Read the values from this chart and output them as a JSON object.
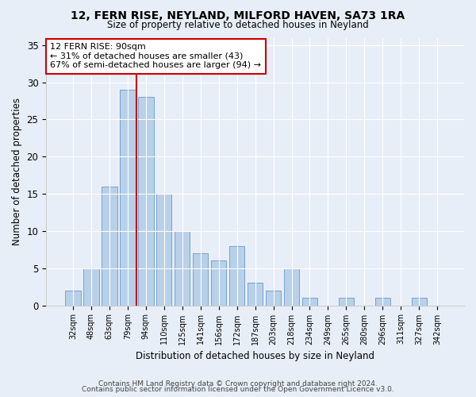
{
  "title1": "12, FERN RISE, NEYLAND, MILFORD HAVEN, SA73 1RA",
  "title2": "Size of property relative to detached houses in Neyland",
  "xlabel": "Distribution of detached houses by size in Neyland",
  "ylabel": "Number of detached properties",
  "categories": [
    "32sqm",
    "48sqm",
    "63sqm",
    "79sqm",
    "94sqm",
    "110sqm",
    "125sqm",
    "141sqm",
    "156sqm",
    "172sqm",
    "187sqm",
    "203sqm",
    "218sqm",
    "234sqm",
    "249sqm",
    "265sqm",
    "280sqm",
    "296sqm",
    "311sqm",
    "327sqm",
    "342sqm"
  ],
  "values": [
    2,
    5,
    16,
    29,
    28,
    15,
    10,
    7,
    6,
    8,
    3,
    2,
    5,
    1,
    0,
    1,
    0,
    1,
    0,
    1,
    0
  ],
  "bar_color": "#b8d0e8",
  "bar_edge_color": "#6699cc",
  "highlight_color": "#cc0000",
  "annotation_title": "12 FERN RISE: 90sqm",
  "annotation_line1": "← 31% of detached houses are smaller (43)",
  "annotation_line2": "67% of semi-detached houses are larger (94) →",
  "annotation_box_color": "#cc0000",
  "ylim": [
    0,
    36
  ],
  "yticks": [
    0,
    5,
    10,
    15,
    20,
    25,
    30,
    35
  ],
  "footer1": "Contains HM Land Registry data © Crown copyright and database right 2024.",
  "footer2": "Contains public sector information licensed under the Open Government Licence v3.0.",
  "background_color": "#e8eef8",
  "plot_background": "#e8eef8"
}
